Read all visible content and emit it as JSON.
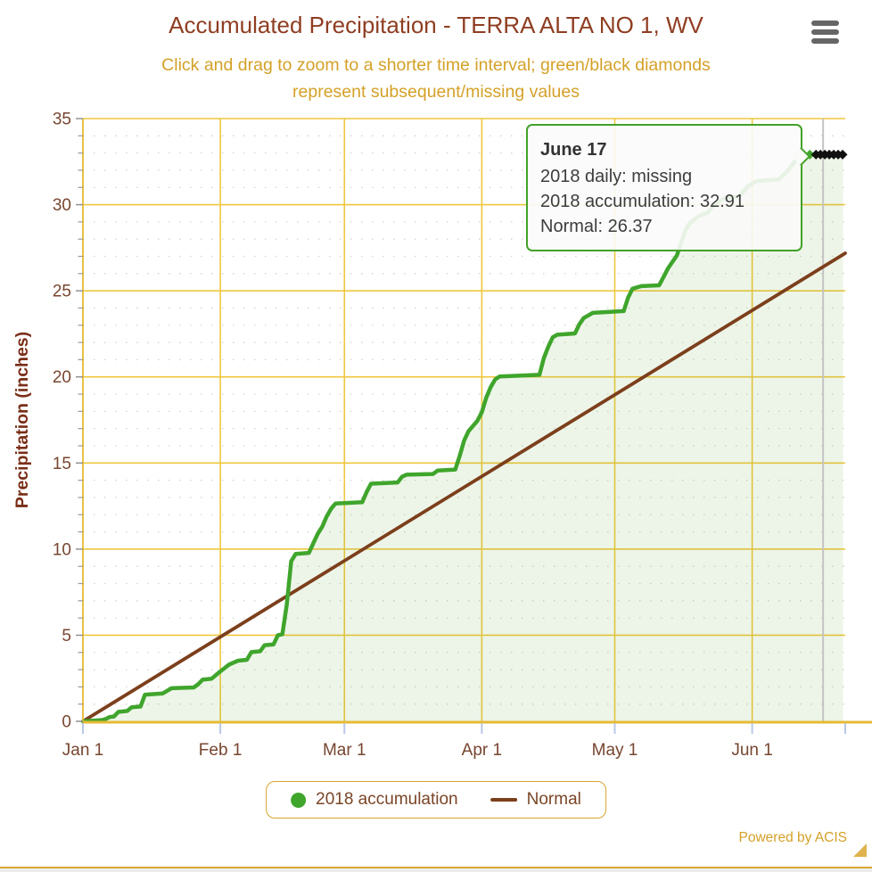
{
  "chart_data": {
    "type": "area",
    "title": "Accumulated Precipitation - TERRA ALTA NO 1, WV",
    "subtitle": "Click and drag to zoom to a shorter time interval; green/black diamonds represent subsequent/missing values",
    "xlabel": "",
    "ylabel": "Precipitation (inches)",
    "x_unit": "days since Jan 1",
    "xlim": [
      0,
      172
    ],
    "ylim": [
      0,
      35
    ],
    "grid": "on",
    "legend_position": "bottom",
    "x_ticks": [
      {
        "day": 0,
        "label": "Jan 1"
      },
      {
        "day": 31,
        "label": "Feb 1"
      },
      {
        "day": 59,
        "label": "Mar 1"
      },
      {
        "day": 90,
        "label": "Apr 1"
      },
      {
        "day": 120,
        "label": "May 1"
      },
      {
        "day": 151,
        "label": "Jun 1"
      },
      {
        "day": 172,
        "label": ""
      }
    ],
    "y_ticks": [
      {
        "v": 0,
        "label": "0"
      },
      {
        "v": 5,
        "label": "5"
      },
      {
        "v": 10,
        "label": "10"
      },
      {
        "v": 15,
        "label": "15"
      },
      {
        "v": 20,
        "label": "20"
      },
      {
        "v": 25,
        "label": "25"
      },
      {
        "v": 30,
        "label": "30"
      },
      {
        "v": 35,
        "label": "35"
      }
    ],
    "series": [
      {
        "name": "2018 accumulation",
        "type": "area-line",
        "color": "#3fa52c",
        "points": [
          [
            0,
            0
          ],
          [
            2,
            0.03
          ],
          [
            4,
            0.06
          ],
          [
            5,
            0.12
          ],
          [
            6,
            0.25
          ],
          [
            7,
            0.28
          ],
          [
            8,
            0.55
          ],
          [
            10,
            0.6
          ],
          [
            11,
            0.82
          ],
          [
            13,
            0.86
          ],
          [
            14,
            1.55
          ],
          [
            18,
            1.62
          ],
          [
            20,
            1.92
          ],
          [
            25,
            1.97
          ],
          [
            26,
            2.15
          ],
          [
            27,
            2.42
          ],
          [
            29,
            2.47
          ],
          [
            31,
            2.9
          ],
          [
            32,
            3.1
          ],
          [
            33,
            3.3
          ],
          [
            35,
            3.52
          ],
          [
            37,
            3.57
          ],
          [
            38,
            4.02
          ],
          [
            40,
            4.07
          ],
          [
            41,
            4.42
          ],
          [
            43,
            4.47
          ],
          [
            44,
            5.0
          ],
          [
            45,
            5.06
          ],
          [
            46,
            6.8
          ],
          [
            47,
            9.3
          ],
          [
            48,
            9.72
          ],
          [
            51,
            9.78
          ],
          [
            52,
            10.35
          ],
          [
            53,
            10.9
          ],
          [
            54,
            11.3
          ],
          [
            55,
            11.9
          ],
          [
            56,
            12.35
          ],
          [
            57,
            12.65
          ],
          [
            63,
            12.72
          ],
          [
            64,
            13.3
          ],
          [
            65,
            13.8
          ],
          [
            71,
            13.87
          ],
          [
            72,
            14.2
          ],
          [
            73,
            14.32
          ],
          [
            79,
            14.36
          ],
          [
            80,
            14.56
          ],
          [
            84,
            14.62
          ],
          [
            85,
            15.4
          ],
          [
            86,
            16.3
          ],
          [
            87,
            16.85
          ],
          [
            89,
            17.45
          ],
          [
            90,
            17.95
          ],
          [
            91,
            18.8
          ],
          [
            92,
            19.4
          ],
          [
            93,
            19.85
          ],
          [
            94,
            20.02
          ],
          [
            103,
            20.12
          ],
          [
            104,
            21.1
          ],
          [
            105,
            21.75
          ],
          [
            106,
            22.3
          ],
          [
            107,
            22.45
          ],
          [
            111,
            22.52
          ],
          [
            112,
            23.05
          ],
          [
            113,
            23.42
          ],
          [
            115,
            23.72
          ],
          [
            122,
            23.82
          ],
          [
            123,
            24.6
          ],
          [
            124,
            25.12
          ],
          [
            126,
            25.27
          ],
          [
            130,
            25.32
          ],
          [
            131,
            25.8
          ],
          [
            132,
            26.3
          ],
          [
            134,
            27.05
          ],
          [
            135,
            27.8
          ],
          [
            136,
            28.55
          ],
          [
            137,
            28.95
          ],
          [
            139,
            29.35
          ],
          [
            141,
            29.55
          ],
          [
            142,
            29.9
          ],
          [
            143,
            30.1
          ],
          [
            145,
            30.42
          ],
          [
            148,
            30.47
          ],
          [
            150,
            31.05
          ],
          [
            152,
            31.38
          ],
          [
            157,
            31.47
          ],
          [
            159,
            31.95
          ],
          [
            160,
            32.3
          ],
          [
            161,
            32.62
          ],
          [
            162,
            32.68
          ],
          [
            164,
            32.91
          ],
          [
            171.5,
            32.91
          ]
        ]
      },
      {
        "name": "Normal",
        "type": "line",
        "color": "#7c3f1c",
        "points": [
          [
            0,
            0
          ],
          [
            172,
            27.18
          ]
        ]
      }
    ],
    "subsequent_marker": {
      "shape": "diamond",
      "color": "#3fa52c",
      "day": 164,
      "value": 32.91
    },
    "missing_markers": {
      "shape": "diamond",
      "color": "#111111",
      "value": 32.91,
      "days": [
        165.4,
        166.4,
        167.4,
        168.4,
        169.4,
        170.4,
        171.4
      ]
    },
    "crosshair_day": 167
  },
  "tooltip": {
    "title": "June 17",
    "line1": "2018 daily: missing",
    "line2": "2018 accumulation: 32.91",
    "line3": "Normal: 26.37"
  },
  "legend": {
    "items": [
      {
        "label": "2018 accumulation",
        "swatch": "circle",
        "color": "#3fa52c"
      },
      {
        "label": "Normal",
        "swatch": "line",
        "color": "#7c3f1c"
      }
    ]
  },
  "footer": {
    "credit": "Powered by ACIS"
  },
  "menu": {
    "icon": "hamburger-icon"
  },
  "colors": {
    "green": "#3fa52c",
    "brown": "#7c3f1c",
    "area_fill": "rgba(106,176,66,0.12)",
    "gold_grid": "#efc73e",
    "gold_axis": "#e6ba33",
    "gold_accent": "#d9a62e",
    "title": "#8f3e22",
    "subtitle": "#d4a128",
    "tick_label": "#774630",
    "axis_title": "#7a2e17",
    "minor_grid": "#d2d6ca",
    "minor_tick": "#9a9a9a",
    "x_tick": "#b9c7e8",
    "crosshair": "#c4c4c4",
    "missing": "#111111",
    "tooltip_border": "#43a129"
  }
}
